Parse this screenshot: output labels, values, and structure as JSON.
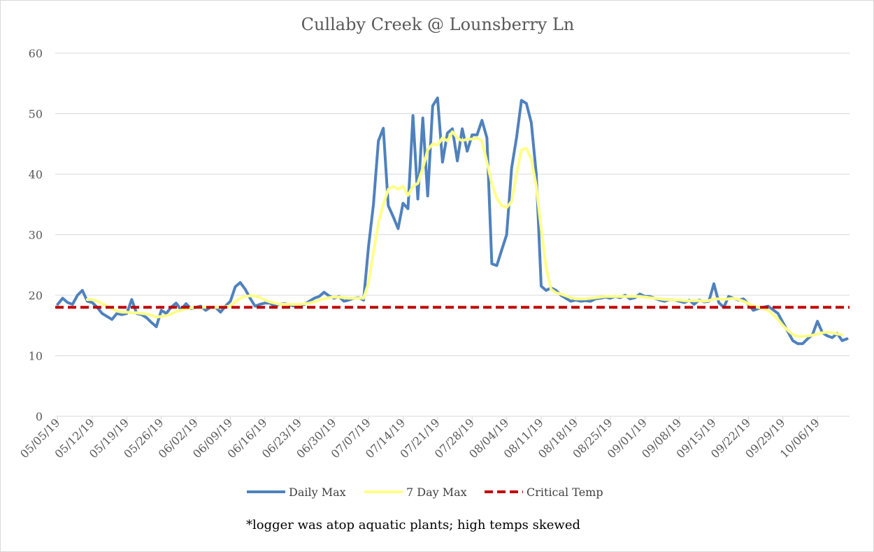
{
  "chart_data": {
    "type": "line",
    "title": "Cullaby Creek @ Lounsberry Ln",
    "note": "*logger was atop aquatic plants; high temps skewed",
    "xlabel": "",
    "ylabel": "",
    "ylim": [
      0,
      60
    ],
    "yticks": [
      0,
      10,
      20,
      30,
      40,
      50,
      60
    ],
    "grid": true,
    "legend_position": "bottom",
    "x_tick_labels": [
      "05/05/19",
      "05/12/19",
      "05/19/19",
      "05/26/19",
      "06/02/19",
      "06/09/19",
      "06/16/19",
      "06/23/19",
      "06/30/19",
      "07/07/19",
      "07/14/19",
      "07/21/19",
      "07/28/19",
      "08/04/19",
      "08/11/19",
      "08/18/19",
      "08/25/19",
      "09/01/19",
      "09/08/19",
      "09/15/19",
      "09/22/19",
      "09/29/19",
      "10/06/19"
    ],
    "colors": {
      "daily_max": "#4f81bd",
      "seven_day_max": "#ffff88",
      "critical": "#c00000",
      "grid": "#d9d9d9"
    },
    "series": [
      {
        "name": "Daily Max",
        "style": "solid",
        "values": [
          18.5,
          19.5,
          18.8,
          18.5,
          20.0,
          20.8,
          19.0,
          18.8,
          18.0,
          17.0,
          16.5,
          16.0,
          17.0,
          16.8,
          17.0,
          19.3,
          17.0,
          16.8,
          16.3,
          15.5,
          14.8,
          17.5,
          17.0,
          18.0,
          18.7,
          17.6,
          18.6,
          17.8,
          18.0,
          18.2,
          17.5,
          18.0,
          18.0,
          17.2,
          18.2,
          19.0,
          21.4,
          22.1,
          21.0,
          19.5,
          18.2,
          18.5,
          18.7,
          18.7,
          18.2,
          18.5,
          18.6,
          18.4,
          18.2,
          18.3,
          18.5,
          19.0,
          19.5,
          19.8,
          20.5,
          19.9,
          19.5,
          19.8,
          19.0,
          19.2,
          19.5,
          19.6,
          19.2,
          28.0,
          35.0,
          45.5,
          47.6,
          34.8,
          33.0,
          31.0,
          35.2,
          34.3,
          49.7,
          35.9,
          49.3,
          36.4,
          51.3,
          52.6,
          42.0,
          46.8,
          47.5,
          42.2,
          47.5,
          43.8,
          46.5,
          46.5,
          48.9,
          46.0,
          25.2,
          24.9,
          27.5,
          30.0,
          41.0,
          46.0,
          52.2,
          51.7,
          48.5,
          40.0,
          21.5,
          20.8,
          21.2,
          20.8,
          20.0,
          19.5,
          19.0,
          19.2,
          19.0,
          19.1,
          19.0,
          19.4,
          19.5,
          19.7,
          19.5,
          19.8,
          19.6,
          20.0,
          19.4,
          19.6,
          20.2,
          19.8,
          19.8,
          19.5,
          19.2,
          19.0,
          19.3,
          19.2,
          19.0,
          18.8,
          19.2,
          18.5,
          19.2,
          18.9,
          19.0,
          21.9,
          18.8,
          18.0,
          19.8,
          19.5,
          19.2,
          19.4,
          18.5,
          17.5,
          17.8,
          18.0,
          18.2,
          17.6,
          17.0,
          15.5,
          14.0,
          12.5,
          12.0,
          12.0,
          12.8,
          13.5,
          15.7,
          13.8,
          13.3,
          13.0,
          13.7,
          12.5,
          12.8
        ]
      },
      {
        "name": "7 Day Max",
        "style": "solid",
        "values": [
          null,
          null,
          null,
          null,
          null,
          null,
          19.3,
          19.3,
          19.0,
          18.6,
          18.2,
          17.8,
          17.4,
          17.2,
          17.2,
          17.1,
          17.1,
          17.0,
          16.9,
          16.7,
          16.4,
          16.5,
          16.6,
          16.9,
          17.3,
          17.5,
          17.8,
          17.9,
          18.0,
          18.0,
          18.0,
          18.0,
          18.0,
          18.0,
          18.1,
          18.2,
          18.9,
          19.5,
          19.8,
          19.9,
          19.9,
          19.6,
          19.2,
          18.9,
          18.7,
          18.5,
          18.5,
          18.5,
          18.5,
          18.5,
          18.6,
          18.7,
          18.9,
          19.2,
          19.4,
          19.6,
          19.7,
          19.7,
          19.6,
          19.5,
          19.5,
          19.5,
          19.5,
          22.0,
          27.0,
          32.0,
          35.0,
          37.5,
          38.0,
          37.5,
          38.0,
          36.5,
          38.0,
          38.5,
          41.0,
          44.0,
          45.0,
          44.8,
          46.0,
          45.5,
          47.0,
          46.0,
          45.5,
          45.8,
          45.8,
          46.0,
          45.5,
          42.0,
          38.5,
          36.0,
          34.8,
          34.5,
          35.5,
          40.0,
          44.0,
          44.3,
          42.5,
          38.0,
          31.0,
          24.5,
          21.0,
          20.4,
          20.2,
          19.9,
          19.6,
          19.4,
          19.4,
          19.4,
          19.5,
          19.6,
          19.7,
          19.8,
          19.8,
          19.8,
          19.8,
          19.8,
          19.8,
          19.8,
          19.8,
          19.7,
          19.6,
          19.5,
          19.4,
          19.3,
          19.3,
          19.2,
          19.2,
          19.1,
          19.1,
          19.1,
          19.1,
          19.0,
          19.1,
          19.4,
          19.4,
          19.3,
          19.4,
          19.5,
          19.3,
          19.0,
          18.6,
          18.2,
          18.0,
          17.8,
          17.5,
          16.8,
          16.0,
          15.0,
          14.2,
          13.5,
          13.2,
          13.2,
          13.3,
          13.4,
          13.6,
          13.8,
          13.9,
          13.8,
          13.6,
          13.5,
          null
        ]
      },
      {
        "name": "Critical Temp",
        "style": "dashed",
        "constant": 18
      }
    ]
  }
}
